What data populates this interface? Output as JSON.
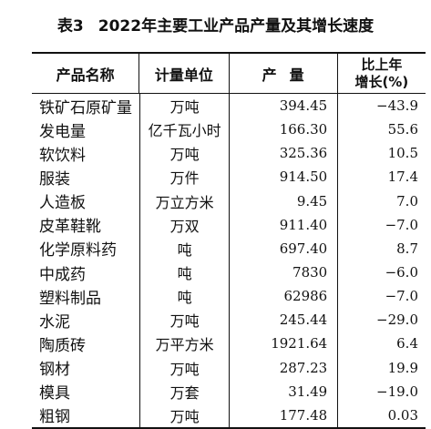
{
  "title": {
    "table_no": "表3",
    "text": "2022年主要工业产品产量及其增长速度"
  },
  "headers": {
    "name": "产品名称",
    "unit": "计量单位",
    "output": "产量",
    "growth_line1": "比上年",
    "growth_line2": "增长(%)"
  },
  "rows": [
    {
      "name": "铁矿石原矿量",
      "unit": "万吨",
      "output": "394.45",
      "growth": "−43.9"
    },
    {
      "name": "发电量",
      "unit": "亿千瓦小时",
      "output": "166.30",
      "growth": "55.6"
    },
    {
      "name": "软饮料",
      "unit": "万吨",
      "output": "325.36",
      "growth": "10.5"
    },
    {
      "name": "服装",
      "unit": "万件",
      "output": "914.50",
      "growth": "17.4"
    },
    {
      "name": "人造板",
      "unit": "万立方米",
      "output": "9.45",
      "growth": "7.0"
    },
    {
      "name": "皮革鞋靴",
      "unit": "万双",
      "output": "911.40",
      "growth": "−7.0"
    },
    {
      "name": "化学原料药",
      "unit": "吨",
      "output": "697.40",
      "growth": "8.7"
    },
    {
      "name": "中成药",
      "unit": "吨",
      "output": "7830",
      "growth": "−6.0"
    },
    {
      "name": "塑料制品",
      "unit": "吨",
      "output": "62986",
      "growth": "−7.0"
    },
    {
      "name": "水泥",
      "unit": "万吨",
      "output": "245.44",
      "growth": "−29.0"
    },
    {
      "name": "陶质砖",
      "unit": "万平方米",
      "output": "1921.64",
      "growth": "6.4"
    },
    {
      "name": "钢材",
      "unit": "万吨",
      "output": "287.23",
      "growth": "19.9"
    },
    {
      "name": "模具",
      "unit": "万套",
      "output": "31.49",
      "growth": "−19.0"
    },
    {
      "name": "粗钢",
      "unit": "万吨",
      "output": "177.48",
      "growth": "0.03"
    }
  ]
}
